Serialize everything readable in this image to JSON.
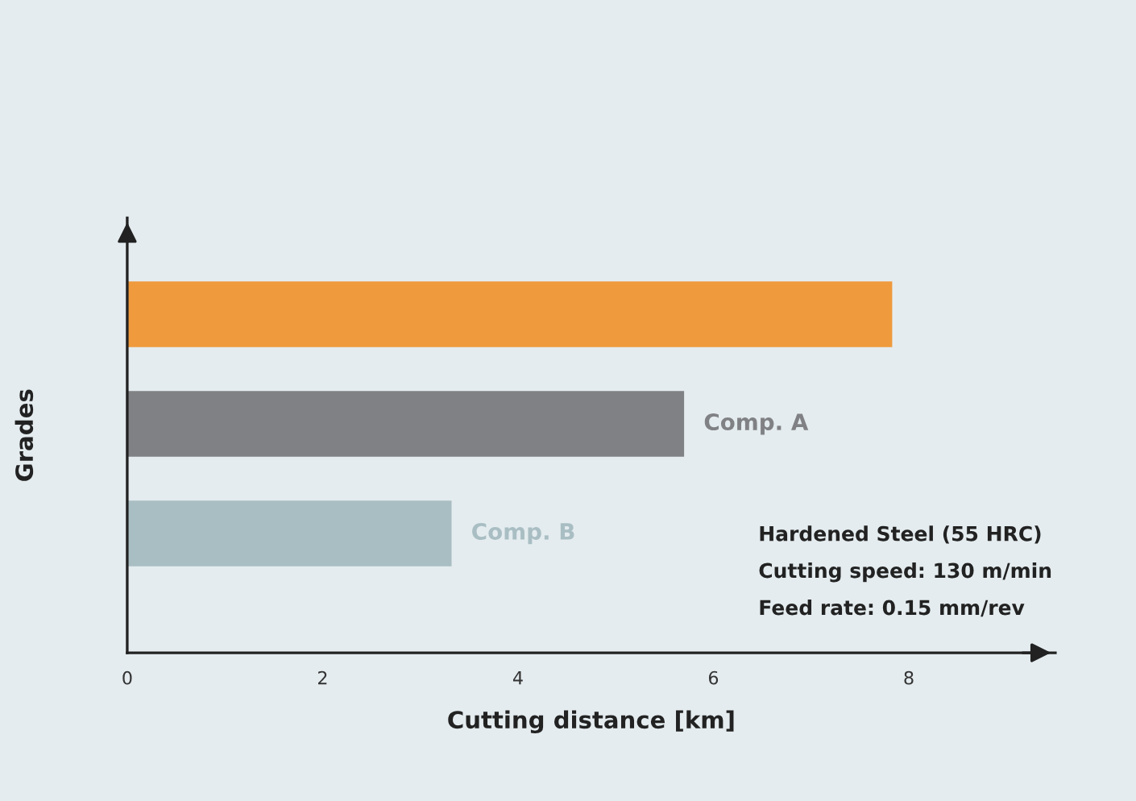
{
  "chart_data": {
    "type": "bar",
    "orientation": "horizontal",
    "categories": [
      null,
      "Comp. A",
      "Comp. B"
    ],
    "values": [
      7.83,
      5.7,
      3.32
    ],
    "colors": [
      "#ef9a3d",
      "#808184",
      "#a9bec3"
    ],
    "xlabel": "Cutting distance [km]",
    "ylabel": "Grades",
    "xlim": [
      0,
      9.5
    ],
    "xticks": [
      0,
      2,
      4,
      6,
      8
    ],
    "grid": false,
    "legend": false,
    "annotations": [
      "Hardened Steel (55 HRC)",
      "Cutting speed: 130 m/min",
      "Feed rate: 0.15 mm/rev"
    ]
  }
}
